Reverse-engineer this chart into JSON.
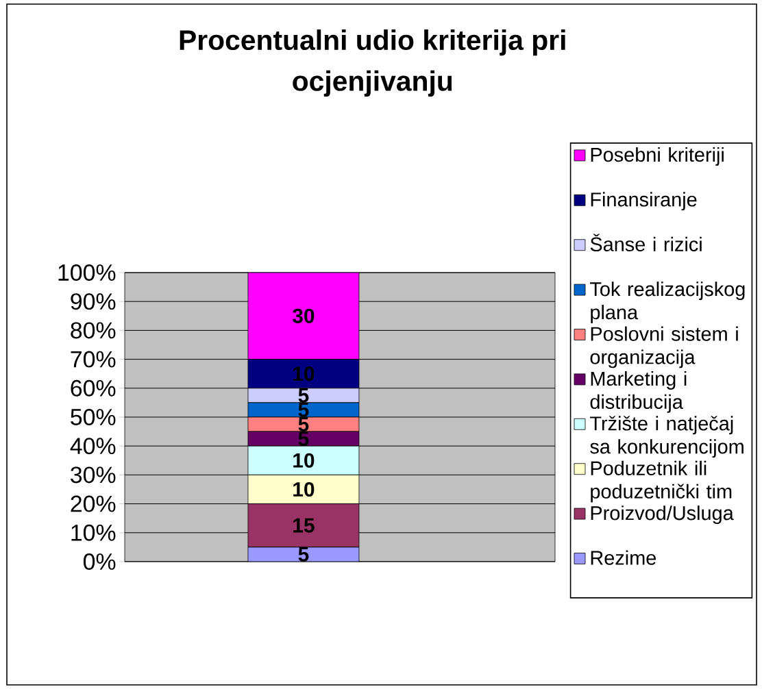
{
  "chart_data": {
    "type": "bar",
    "title": "Procentualni udio kriterija pri ocjenjivanju",
    "categories": [
      null
    ],
    "stacked": true,
    "series": [
      {
        "name": "Rezime",
        "color": "#9999ff",
        "values": [
          5
        ]
      },
      {
        "name": "Proizvod/Usluga",
        "color": "#993366",
        "values": [
          15
        ]
      },
      {
        "name": "Poduzetnik ili poduzetnički tim",
        "color": "#ffffcc",
        "values": [
          10
        ]
      },
      {
        "name": "Tržište i natječaj sa konkurencijom",
        "color": "#ccffff",
        "values": [
          10
        ]
      },
      {
        "name": "Marketing i distribucija",
        "color": "#660066",
        "values": [
          5
        ]
      },
      {
        "name": "Poslovni sistem i organizacija",
        "color": "#ff8080",
        "values": [
          5
        ]
      },
      {
        "name": "Tok realizacijskog plana",
        "color": "#0066cc",
        "values": [
          5
        ]
      },
      {
        "name": "Šanse i rizici",
        "color": "#ccccff",
        "values": [
          5
        ]
      },
      {
        "name": "Finansiranje",
        "color": "#000080",
        "values": [
          10
        ]
      },
      {
        "name": "Posebni kriteriji",
        "color": "#ff00ff",
        "values": [
          30
        ]
      }
    ],
    "ylim": [
      0,
      100
    ],
    "yticks": [
      {
        "value": 0,
        "label": "0%"
      },
      {
        "value": 10,
        "label": "10%"
      },
      {
        "value": 20,
        "label": "20%"
      },
      {
        "value": 30,
        "label": "30%"
      },
      {
        "value": 40,
        "label": "40%"
      },
      {
        "value": 50,
        "label": "50%"
      },
      {
        "value": 60,
        "label": "60%"
      },
      {
        "value": 70,
        "label": "70%"
      },
      {
        "value": 80,
        "label": "80%"
      },
      {
        "value": 90,
        "label": "90%"
      },
      {
        "value": 100,
        "label": "100%"
      }
    ],
    "grid": "y",
    "legend": "right",
    "data_labels": true
  }
}
